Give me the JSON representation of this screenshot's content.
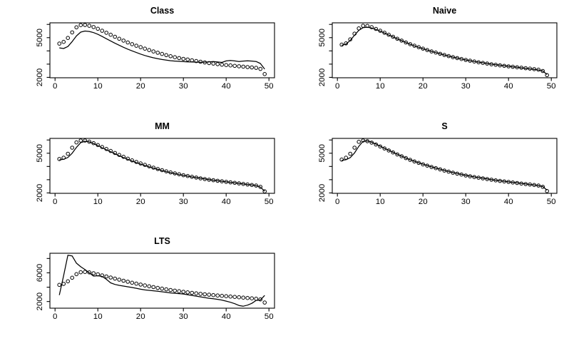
{
  "figure": {
    "background": "#ffffff",
    "stroke_color": "#000000",
    "layout": "2x3-grid-last-cell-empty"
  },
  "chart_data": [
    {
      "type": "line",
      "title": "Class",
      "x_start": 1,
      "xlim": [
        -1.2,
        51.3
      ],
      "ylim": [
        1970,
        6120
      ],
      "xticks": [
        0,
        10,
        20,
        30,
        40,
        50
      ],
      "xtick_labels": [
        "0",
        "10",
        "20",
        "30",
        "40",
        "50"
      ],
      "yticks": [
        2000,
        3000,
        4000,
        5000,
        6000
      ],
      "ytick_labeled": [
        2000,
        5000
      ],
      "grid": false,
      "legend": "none",
      "series": [
        {
          "name": "circles",
          "marker": "o",
          "values": [
            4550,
            4680,
            4980,
            5400,
            5780,
            5950,
            5960,
            5900,
            5800,
            5670,
            5520,
            5370,
            5220,
            5070,
            4920,
            4780,
            4640,
            4510,
            4390,
            4280,
            4170,
            4060,
            3960,
            3860,
            3770,
            3680,
            3600,
            3520,
            3460,
            3400,
            3350,
            3290,
            3230,
            3180,
            3130,
            3080,
            3040,
            3000,
            2960,
            2930,
            2900,
            2870,
            2840,
            2810,
            2780,
            2750,
            2720,
            2640,
            2250
          ]
        },
        {
          "name": "line",
          "marker": "line",
          "values": [
            4230,
            4180,
            4330,
            4700,
            5130,
            5420,
            5500,
            5470,
            5380,
            5250,
            5090,
            4920,
            4750,
            4580,
            4420,
            4270,
            4130,
            4000,
            3880,
            3760,
            3650,
            3560,
            3480,
            3410,
            3350,
            3300,
            3260,
            3230,
            3210,
            3190,
            3170,
            3160,
            3150,
            3140,
            3150,
            3170,
            3200,
            3160,
            3130,
            3240,
            3280,
            3240,
            3200,
            3230,
            3250,
            3230,
            3200,
            3050,
            2620
          ]
        }
      ]
    },
    {
      "type": "line",
      "title": "Naive",
      "x_start": 1,
      "xlim": [
        -1.2,
        51.3
      ],
      "ylim": [
        1970,
        6120
      ],
      "xticks": [
        0,
        10,
        20,
        30,
        40,
        50
      ],
      "xtick_labels": [
        "0",
        "10",
        "20",
        "30",
        "40",
        "50"
      ],
      "yticks": [
        2000,
        3000,
        4000,
        5000,
        6000
      ],
      "ytick_labeled": [
        2000,
        5000
      ],
      "grid": false,
      "legend": "none",
      "series": [
        {
          "name": "circles",
          "marker": "o",
          "values": [
            4470,
            4570,
            4870,
            5300,
            5700,
            5900,
            5890,
            5790,
            5660,
            5520,
            5370,
            5220,
            5070,
            4920,
            4780,
            4640,
            4510,
            4390,
            4280,
            4170,
            4060,
            3960,
            3870,
            3780,
            3690,
            3610,
            3530,
            3460,
            3390,
            3320,
            3260,
            3200,
            3140,
            3090,
            3040,
            2990,
            2950,
            2910,
            2870,
            2830,
            2800,
            2760,
            2730,
            2690,
            2660,
            2620,
            2580,
            2480,
            2170
          ]
        },
        {
          "name": "line",
          "marker": "line",
          "values": [
            4420,
            4510,
            4790,
            5180,
            5550,
            5760,
            5790,
            5730,
            5620,
            5490,
            5350,
            5200,
            5060,
            4910,
            4770,
            4630,
            4500,
            4380,
            4270,
            4160,
            4060,
            3960,
            3870,
            3780,
            3690,
            3610,
            3530,
            3460,
            3390,
            3320,
            3260,
            3200,
            3150,
            3100,
            3050,
            3000,
            2960,
            2920,
            2880,
            2840,
            2800,
            2760,
            2720,
            2680,
            2640,
            2600,
            2560,
            2480,
            2220
          ]
        }
      ]
    },
    {
      "type": "line",
      "title": "MM",
      "x_start": 1,
      "xlim": [
        -1.2,
        51.3
      ],
      "ylim": [
        1970,
        6120
      ],
      "xticks": [
        0,
        10,
        20,
        30,
        40,
        50
      ],
      "xtick_labels": [
        "0",
        "10",
        "20",
        "30",
        "40",
        "50"
      ],
      "yticks": [
        2000,
        3000,
        4000,
        5000,
        6000
      ],
      "ytick_labeled": [
        2000,
        5000
      ],
      "grid": false,
      "legend": "none",
      "series": [
        {
          "name": "circles",
          "marker": "o",
          "values": [
            4560,
            4660,
            4960,
            5420,
            5820,
            5960,
            5960,
            5870,
            5760,
            5620,
            5470,
            5320,
            5170,
            5020,
            4870,
            4730,
            4590,
            4460,
            4340,
            4230,
            4120,
            4010,
            3910,
            3810,
            3720,
            3630,
            3550,
            3480,
            3410,
            3340,
            3280,
            3220,
            3160,
            3100,
            3050,
            3000,
            2960,
            2920,
            2880,
            2840,
            2800,
            2760,
            2720,
            2680,
            2640,
            2600,
            2560,
            2460,
            2120
          ]
        },
        {
          "name": "line",
          "marker": "line",
          "values": [
            4500,
            4540,
            4680,
            5000,
            5440,
            5800,
            5900,
            5860,
            5730,
            5580,
            5420,
            5260,
            5110,
            4960,
            4810,
            4670,
            4540,
            4410,
            4290,
            4180,
            4070,
            3970,
            3870,
            3780,
            3690,
            3610,
            3530,
            3460,
            3390,
            3330,
            3270,
            3210,
            3160,
            3110,
            3060,
            3010,
            2960,
            2920,
            2880,
            2840,
            2800,
            2760,
            2720,
            2680,
            2640,
            2600,
            2550,
            2440,
            2130
          ]
        }
      ]
    },
    {
      "type": "line",
      "title": "S",
      "x_start": 1,
      "xlim": [
        -1.2,
        51.3
      ],
      "ylim": [
        1970,
        6120
      ],
      "xticks": [
        0,
        10,
        20,
        30,
        40,
        50
      ],
      "xtick_labels": [
        "0",
        "10",
        "20",
        "30",
        "40",
        "50"
      ],
      "yticks": [
        2000,
        3000,
        4000,
        5000,
        6000
      ],
      "ytick_labeled": [
        2000,
        5000
      ],
      "grid": false,
      "legend": "none",
      "series": [
        {
          "name": "circles",
          "marker": "o",
          "values": [
            4520,
            4660,
            4960,
            5420,
            5860,
            5960,
            5910,
            5800,
            5660,
            5510,
            5360,
            5210,
            5060,
            4910,
            4770,
            4630,
            4500,
            4380,
            4270,
            4160,
            4060,
            3960,
            3870,
            3780,
            3690,
            3610,
            3530,
            3460,
            3390,
            3320,
            3260,
            3200,
            3150,
            3100,
            3050,
            3000,
            2950,
            2910,
            2870,
            2830,
            2790,
            2750,
            2710,
            2670,
            2640,
            2600,
            2560,
            2460,
            2140
          ]
        },
        {
          "name": "line",
          "marker": "line",
          "values": [
            4460,
            4510,
            4670,
            5020,
            5520,
            5900,
            5930,
            5830,
            5690,
            5530,
            5370,
            5220,
            5070,
            4920,
            4780,
            4640,
            4510,
            4390,
            4280,
            4170,
            4070,
            3970,
            3880,
            3790,
            3700,
            3620,
            3540,
            3470,
            3400,
            3330,
            3270,
            3210,
            3160,
            3110,
            3060,
            3010,
            2960,
            2920,
            2880,
            2840,
            2800,
            2760,
            2720,
            2680,
            2640,
            2600,
            2560,
            2480,
            2210
          ]
        }
      ]
    },
    {
      "type": "line",
      "title": "LTS",
      "x_start": 1,
      "xlim": [
        -1.2,
        51.3
      ],
      "ylim": [
        1070,
        8730
      ],
      "xticks": [
        0,
        10,
        20,
        30,
        40,
        50
      ],
      "xtick_labels": [
        "0",
        "10",
        "20",
        "30",
        "40",
        "50"
      ],
      "yticks": [
        2000,
        4000,
        6000,
        8000
      ],
      "ytick_labeled": [
        2000,
        6000
      ],
      "grid": false,
      "legend": "none",
      "series": [
        {
          "name": "circles",
          "marker": "o",
          "values": [
            4320,
            4460,
            4820,
            5320,
            5820,
            6080,
            6120,
            6060,
            5940,
            5800,
            5650,
            5500,
            5350,
            5200,
            5050,
            4900,
            4760,
            4620,
            4490,
            4360,
            4240,
            4120,
            4010,
            3900,
            3800,
            3700,
            3610,
            3520,
            3440,
            3360,
            3280,
            3210,
            3140,
            3070,
            3010,
            2950,
            2890,
            2840,
            2790,
            2740,
            2690,
            2640,
            2590,
            2540,
            2490,
            2440,
            2390,
            2290,
            1860
          ]
        },
        {
          "name": "line",
          "marker": "line",
          "values": [
            2900,
            5600,
            8450,
            8350,
            7350,
            6850,
            6450,
            6000,
            5550,
            5600,
            5500,
            5100,
            4600,
            4380,
            4250,
            4150,
            4050,
            3950,
            3850,
            3720,
            3620,
            3560,
            3500,
            3430,
            3360,
            3280,
            3200,
            3150,
            3100,
            3050,
            2950,
            2850,
            2750,
            2650,
            2550,
            2450,
            2380,
            2300,
            2200,
            2050,
            1900,
            1700,
            1450,
            1350,
            1500,
            1750,
            2150,
            2200,
            2850
          ]
        }
      ]
    }
  ]
}
